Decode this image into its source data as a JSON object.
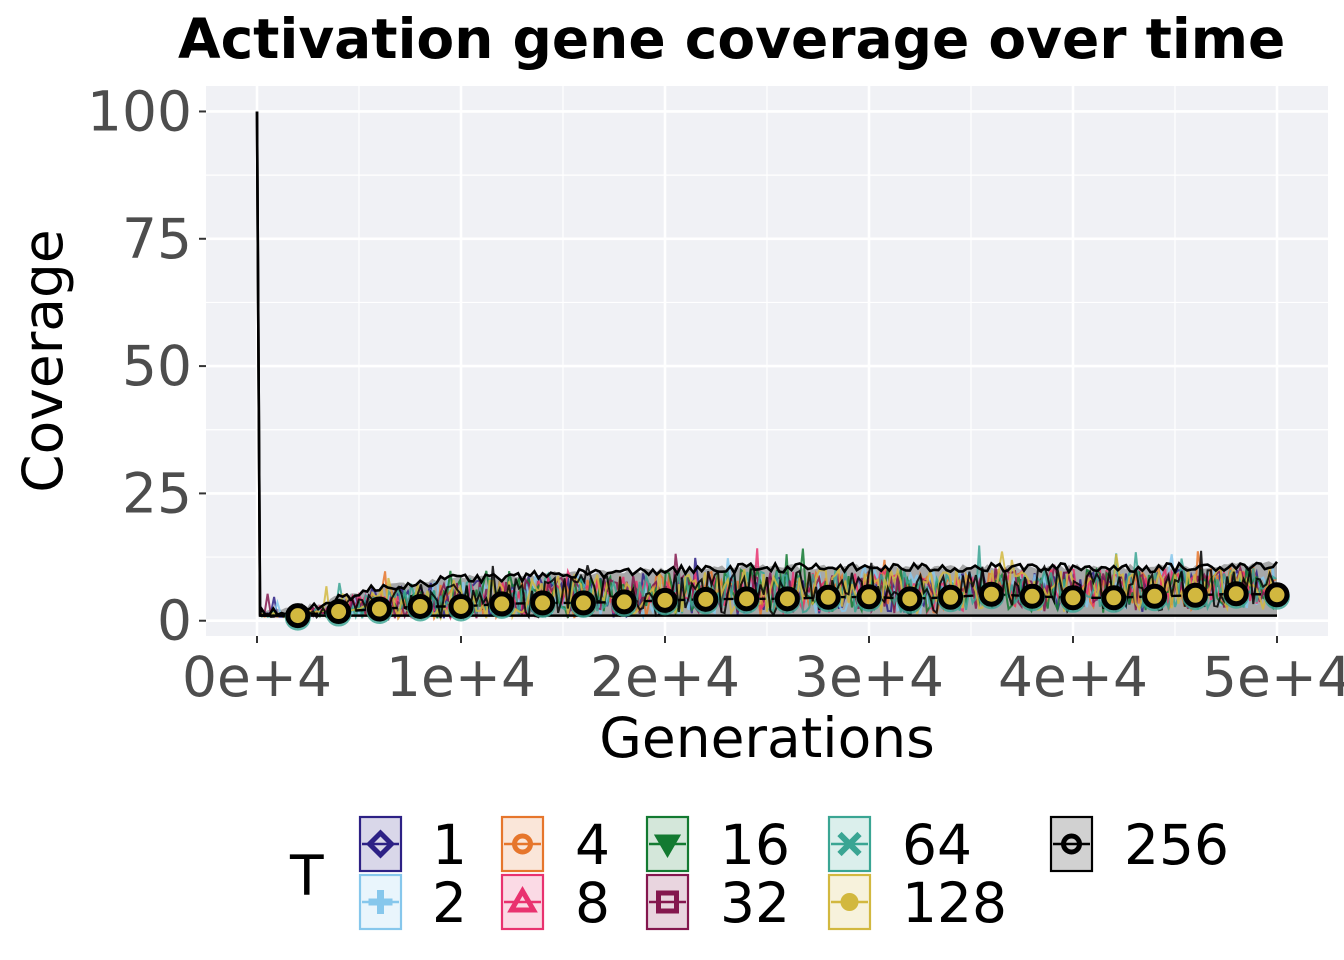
{
  "chart_data": {
    "type": "line",
    "title": "Activation gene coverage over time",
    "xlabel": "Generations",
    "ylabel": "Coverage",
    "xlim": [
      -2500,
      52500
    ],
    "ylim": [
      -3,
      105
    ],
    "xticks": [
      0,
      10000,
      20000,
      30000,
      40000,
      50000
    ],
    "xtick_labels": [
      "0e+4",
      "1e+4",
      "2e+4",
      "3e+4",
      "4e+4",
      "5e+4"
    ],
    "yticks": [
      0,
      25,
      50,
      75,
      100
    ],
    "ytick_labels": [
      "0",
      "25",
      "50",
      "75",
      "100"
    ],
    "grid": true,
    "legend": {
      "title": "T",
      "placement": "bottom",
      "entries": [
        {
          "label": "1",
          "color": "#2d2185",
          "marker": "diamond"
        },
        {
          "label": "2",
          "color": "#86c7ec",
          "marker": "plus"
        },
        {
          "label": "4",
          "color": "#e6762c",
          "marker": "circle-open"
        },
        {
          "label": "8",
          "color": "#e9326f",
          "marker": "triangle"
        },
        {
          "label": "16",
          "color": "#137a31",
          "marker": "triangle-down"
        },
        {
          "label": "32",
          "color": "#84174e",
          "marker": "square"
        },
        {
          "label": "64",
          "color": "#3aa593",
          "marker": "x"
        },
        {
          "label": "128",
          "color": "#d2b83f",
          "marker": "circle"
        },
        {
          "label": "256",
          "color": "#000000",
          "marker": "circle-open"
        }
      ]
    },
    "initial_point": {
      "x": 0,
      "y": 100
    },
    "median_x": [
      2000,
      4000,
      6000,
      8000,
      10000,
      12000,
      14000,
      16000,
      18000,
      20000,
      22000,
      24000,
      26000,
      28000,
      30000,
      32000,
      34000,
      36000,
      38000,
      40000,
      42000,
      44000,
      46000,
      48000,
      50000
    ],
    "median_y": [
      1,
      1.8,
      2.3,
      2.8,
      2.8,
      3.3,
      3.5,
      3.5,
      3.7,
      4,
      4.2,
      4.3,
      4.3,
      4.6,
      4.7,
      4.3,
      4.6,
      5.2,
      4.8,
      4.5,
      4.5,
      4.8,
      5,
      5.3,
      5.1
    ],
    "series": [
      {
        "name": "256",
        "lower": [
          1,
          1,
          1,
          1,
          1,
          1,
          1,
          1,
          1,
          1,
          1,
          1,
          1,
          1,
          1,
          1,
          1,
          1,
          1,
          1,
          1,
          1,
          1,
          1,
          1
        ],
        "upper": [
          1.5,
          4,
          6,
          7,
          8,
          8,
          8.5,
          9,
          9,
          9.5,
          9.5,
          10,
          10,
          10,
          10,
          10,
          10,
          10,
          10,
          10,
          10,
          10,
          10,
          10.5,
          10.5
        ]
      }
    ]
  }
}
